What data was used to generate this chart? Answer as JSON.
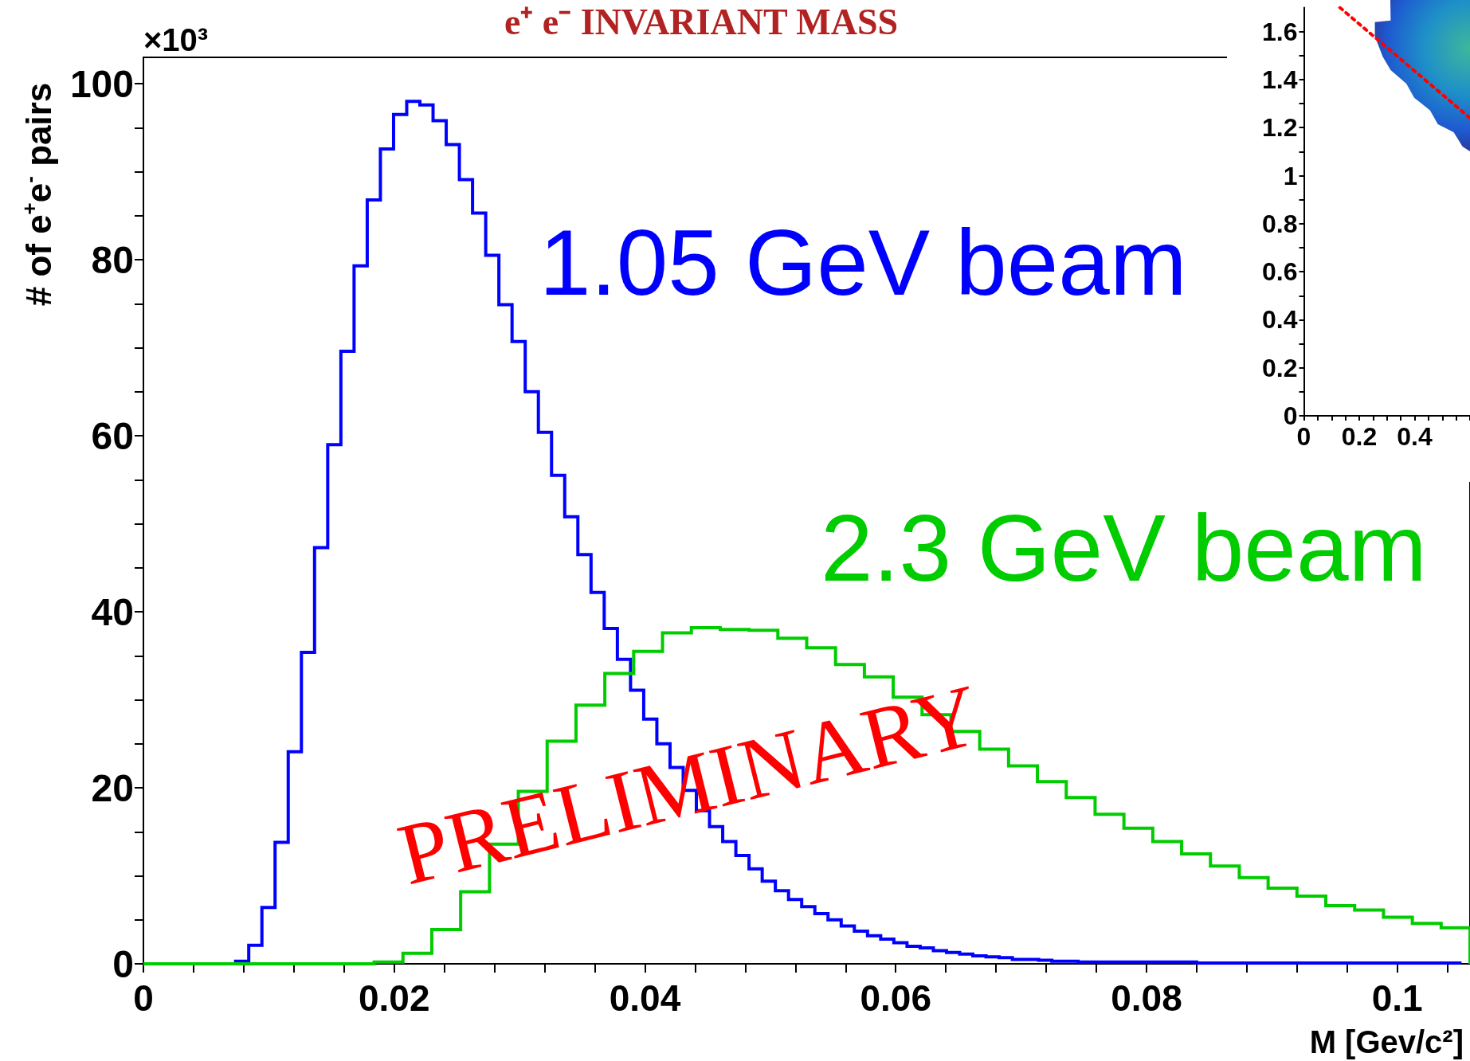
{
  "chart_data": [
    {
      "type": "histogram",
      "title": "e⁺ e⁻ INVARIANT MASS",
      "xlabel": "M [Gev/c²]",
      "ylabel": "# of e$^{+}$e$^{-}$ pairs",
      "annotations": [
        "×10³",
        "PRELIMINARY"
      ],
      "xlim": [
        0,
        0.1058
      ],
      "ylim": [
        0,
        103
      ],
      "xticks": [
        0,
        {
          "value": 0.004,
          "label": null
        },
        {
          "value": 0.008,
          "label": null
        },
        {
          "value": 0.012,
          "label": null
        },
        {
          "value": 0.016,
          "label": null
        },
        0.02,
        {
          "value": 0.024,
          "label": null
        },
        {
          "value": 0.028,
          "label": null
        },
        {
          "value": 0.032,
          "label": null
        },
        {
          "value": 0.036,
          "label": null
        },
        0.04,
        {
          "value": 0.044,
          "label": null
        },
        {
          "value": 0.048,
          "label": null
        },
        {
          "value": 0.052,
          "label": null
        },
        {
          "value": 0.056,
          "label": null
        },
        0.06,
        {
          "value": 0.064,
          "label": null
        },
        {
          "value": 0.068,
          "label": null
        },
        {
          "value": 0.072,
          "label": null
        },
        {
          "value": 0.076,
          "label": null
        },
        0.08,
        {
          "value": 0.084,
          "label": null
        },
        {
          "value": 0.088,
          "label": null
        },
        {
          "value": 0.092,
          "label": null
        },
        {
          "value": 0.096,
          "label": null
        },
        0.1,
        {
          "value": 0.104,
          "label": null
        }
      ],
      "yticks": [
        0,
        {
          "value": 5,
          "label": null
        },
        {
          "value": 10,
          "label": null
        },
        {
          "value": 15,
          "label": null
        },
        20,
        {
          "value": 25,
          "label": null
        },
        {
          "value": 30,
          "label": null
        },
        {
          "value": 35,
          "label": null
        },
        40,
        {
          "value": 45,
          "label": null
        },
        {
          "value": 50,
          "label": null
        },
        {
          "value": 55,
          "label": null
        },
        60,
        {
          "value": 65,
          "label": null
        },
        {
          "value": 70,
          "label": null
        },
        {
          "value": 75,
          "label": null
        },
        80,
        {
          "value": 85,
          "label": null
        },
        {
          "value": 90,
          "label": null
        },
        {
          "value": 95,
          "label": null
        },
        100
      ],
      "bins": [
        0,
        0.00105,
        0.0021,
        0.00315,
        0.0042,
        0.00525,
        0.0063,
        0.00735,
        0.0084,
        0.00945,
        0.0105,
        0.01155,
        0.0126,
        0.01365,
        0.0147,
        0.01575,
        0.0168,
        0.01785,
        0.0189,
        0.01995,
        0.021,
        0.02205,
        0.0231,
        0.02415,
        0.0252,
        0.02625,
        0.0273,
        0.02835,
        0.0294,
        0.03045,
        0.0315,
        0.03255,
        0.0336,
        0.03465,
        0.0357,
        0.03675,
        0.0378,
        0.03885,
        0.0399,
        0.04095,
        0.042,
        0.04305,
        0.0441,
        0.04515,
        0.0462,
        0.04725,
        0.0483,
        0.04935,
        0.0504,
        0.05145,
        0.0525,
        0.05355,
        0.0546,
        0.05565,
        0.0567,
        0.05775,
        0.0588,
        0.05985,
        0.0609,
        0.06195,
        0.063,
        0.06405,
        0.0651,
        0.06615,
        0.0672,
        0.06825,
        0.0693,
        0.07035,
        0.0714,
        0.07245,
        0.0735,
        0.07455,
        0.0756,
        0.07665,
        0.0777,
        0.07875,
        0.0798,
        0.08085,
        0.0819,
        0.08295,
        0.084,
        0.08505,
        0.0861,
        0.08715,
        0.0882,
        0.08925,
        0.0903,
        0.09135,
        0.0924,
        0.09345,
        0.0945,
        0.09555,
        0.0966,
        0.09765,
        0.0987,
        0.09975,
        0.1008,
        0.10185,
        0.1029,
        0.10395,
        0.105
      ],
      "series": [
        {
          "name": "1.05 GeV beam",
          "color": "#0000ff",
          "values": [
            0,
            0,
            0,
            0,
            0,
            0,
            0,
            0.3,
            2.1,
            6.4,
            13.8,
            24.1,
            35.4,
            47.3,
            59.0,
            69.6,
            79.3,
            86.8,
            92.6,
            96.5,
            98.0,
            97.6,
            95.8,
            93.1,
            89.1,
            85.3,
            80.5,
            74.9,
            70.7,
            65.0,
            60.4,
            55.5,
            50.8,
            46.5,
            42.2,
            38.1,
            34.6,
            31.1,
            27.8,
            25.0,
            22.3,
            19.7,
            17.4,
            15.6,
            13.9,
            12.3,
            10.8,
            9.4,
            8.3,
            7.3,
            6.5,
            5.7,
            5.0,
            4.3,
            3.7,
            3.2,
            2.8,
            2.4,
            2.0,
            1.8,
            1.5,
            1.3,
            1.1,
            0.9,
            0.8,
            0.7,
            0.5,
            0.5,
            0.4,
            0.3,
            0.3,
            0.2,
            0.2,
            0.2,
            0.2,
            0.2,
            0.2,
            0.2,
            0.2,
            0.2,
            0.1,
            0.1,
            0.1,
            0.1,
            0.1,
            0.1,
            0.1,
            0.1,
            0.1,
            0.1,
            0.1,
            0.1,
            0.1,
            0.1,
            0.1,
            0.1,
            0.1,
            0.1,
            0.1,
            0.1
          ]
        },
        {
          "name": "2.3 GeV beam",
          "color": "#00cc00",
          "bins": [
            0,
            0.0023,
            0.0046,
            0.0069,
            0.0092,
            0.0115,
            0.0138,
            0.0161,
            0.0184,
            0.0207,
            0.023,
            0.0253,
            0.0276,
            0.0299,
            0.0322,
            0.0345,
            0.0368,
            0.0391,
            0.0414,
            0.0437,
            0.046,
            0.0483,
            0.0506,
            0.0529,
            0.0552,
            0.0575,
            0.0598,
            0.0621,
            0.0644,
            0.0667,
            0.069,
            0.0713,
            0.0736,
            0.0759,
            0.0782,
            0.0805,
            0.0828,
            0.0851,
            0.0874,
            0.0897,
            0.092,
            0.0943,
            0.0966,
            0.0989,
            0.1012,
            0.1035,
            0.1058
          ],
          "values": [
            0,
            0,
            0,
            0,
            0,
            0,
            0,
            0,
            0.2,
            1.2,
            3.9,
            8.2,
            13.6,
            19.6,
            25.3,
            29.4,
            33.0,
            35.5,
            37.6,
            38.2,
            38.0,
            37.9,
            37.0,
            35.9,
            34.0,
            32.6,
            30.3,
            28.3,
            26.4,
            24.4,
            22.5,
            20.7,
            18.9,
            17.0,
            15.4,
            13.9,
            12.5,
            11.1,
            9.8,
            8.6,
            7.7,
            6.6,
            6.1,
            5.3,
            4.6,
            4.1
          ]
        }
      ]
    },
    {
      "type": "line",
      "xlim": [
        0,
        0.6
      ],
      "ylim": [
        0,
        1.7
      ],
      "xticks": [
        0,
        {
          "value": 0.05,
          "label": null
        },
        {
          "value": 0.1,
          "label": null
        },
        {
          "value": 0.15,
          "label": null
        },
        0.2,
        {
          "value": 0.25,
          "label": null
        },
        {
          "value": 0.3,
          "label": null
        },
        {
          "value": 0.35,
          "label": null
        },
        0.4,
        {
          "value": 0.45,
          "label": null
        },
        {
          "value": 0.5,
          "label": null
        },
        {
          "value": 0.55,
          "label": null
        },
        {
          "value": 0.6,
          "label": null
        }
      ],
      "yticks": [
        0,
        {
          "value": 0.1,
          "label": null
        },
        0.2,
        {
          "value": 0.3,
          "label": null
        },
        0.4,
        {
          "value": 0.5,
          "label": null
        },
        0.6,
        {
          "value": 0.7,
          "label": null
        },
        0.8,
        {
          "value": 0.9,
          "label": null
        },
        1,
        {
          "value": 1.1,
          "label": null
        },
        1.2,
        {
          "value": 1.3,
          "label": null
        },
        1.4,
        {
          "value": 1.5,
          "label": null
        },
        1.6
      ],
      "series": [
        {
          "color": "#ff0000",
          "line_style": "dotted",
          "x": [
            0.13,
            0.6
          ],
          "values": [
            1.7,
            1.24
          ]
        }
      ]
    }
  ]
}
